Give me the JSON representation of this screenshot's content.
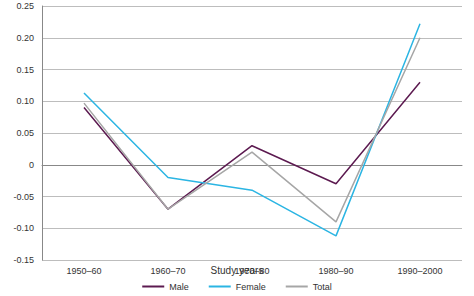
{
  "chart_data": {
    "type": "line",
    "x_label": "Study years",
    "categories": [
      "1950–60",
      "1960–70",
      "1970–80",
      "1980–90",
      "1990–2000"
    ],
    "series": [
      {
        "name": "Male",
        "color": "#5c1a50",
        "values": [
          0.09,
          -0.07,
          0.03,
          -0.03,
          0.13
        ]
      },
      {
        "name": "Female",
        "color": "#2bb5e3",
        "values": [
          0.113,
          -0.02,
          -0.04,
          -0.112,
          0.222
        ]
      },
      {
        "name": "Total",
        "color": "#a6a6a6",
        "values": [
          0.097,
          -0.07,
          0.02,
          -0.09,
          0.2
        ]
      }
    ],
    "ylim": [
      -0.15,
      0.25
    ],
    "yticks": [
      -0.15,
      {
        "value": -0.1,
        "label": "-0.10"
      },
      -0.05,
      0,
      0.05,
      {
        "value": 0.1,
        "label": "0.10"
      },
      0.15,
      {
        "value": 0.2,
        "label": "0.20"
      },
      0.25
    ],
    "grid": true,
    "legend": "bottom"
  }
}
